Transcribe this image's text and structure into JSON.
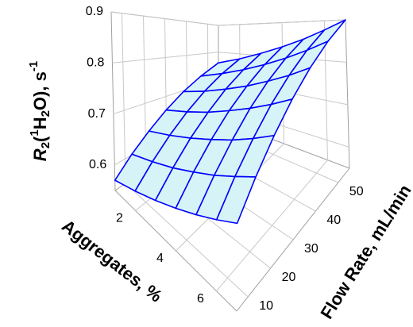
{
  "chart_data": {
    "type": "surface",
    "xlabel": "Aggregates, %",
    "ylabel": "Flow Rate, mL/min",
    "zlabel_parts": [
      "R",
      "2",
      "(",
      "1",
      "H",
      "2",
      "O), s",
      "-1"
    ],
    "x": [
      1,
      2,
      3,
      4,
      5,
      6,
      7
    ],
    "y": [
      5,
      13.33,
      21.67,
      30,
      38.33,
      46.67,
      55
    ],
    "z": [
      [
        0.57,
        0.585,
        0.6,
        0.615,
        0.63,
        0.645,
        0.66
      ],
      [
        0.602,
        0.618,
        0.634,
        0.651,
        0.667,
        0.684,
        0.7
      ],
      [
        0.633,
        0.651,
        0.669,
        0.687,
        0.704,
        0.722,
        0.74
      ],
      [
        0.665,
        0.684,
        0.703,
        0.723,
        0.742,
        0.761,
        0.78
      ],
      [
        0.697,
        0.717,
        0.738,
        0.758,
        0.779,
        0.799,
        0.82
      ],
      [
        0.728,
        0.75,
        0.772,
        0.794,
        0.816,
        0.838,
        0.86
      ],
      [
        0.76,
        0.783,
        0.807,
        0.83,
        0.853,
        0.877,
        0.9
      ]
    ],
    "xlim": [
      1,
      7
    ],
    "xticks": [
      2,
      4,
      6
    ],
    "ylim": [
      5,
      55
    ],
    "yticks": [
      10,
      20,
      30,
      40,
      50
    ],
    "zlim": [
      0.55,
      0.9
    ],
    "zticks": [
      0.6,
      0.7,
      0.8,
      0.9
    ],
    "line_color": "#0000ff",
    "fill_color": "#d6f3f7",
    "grid": true
  }
}
